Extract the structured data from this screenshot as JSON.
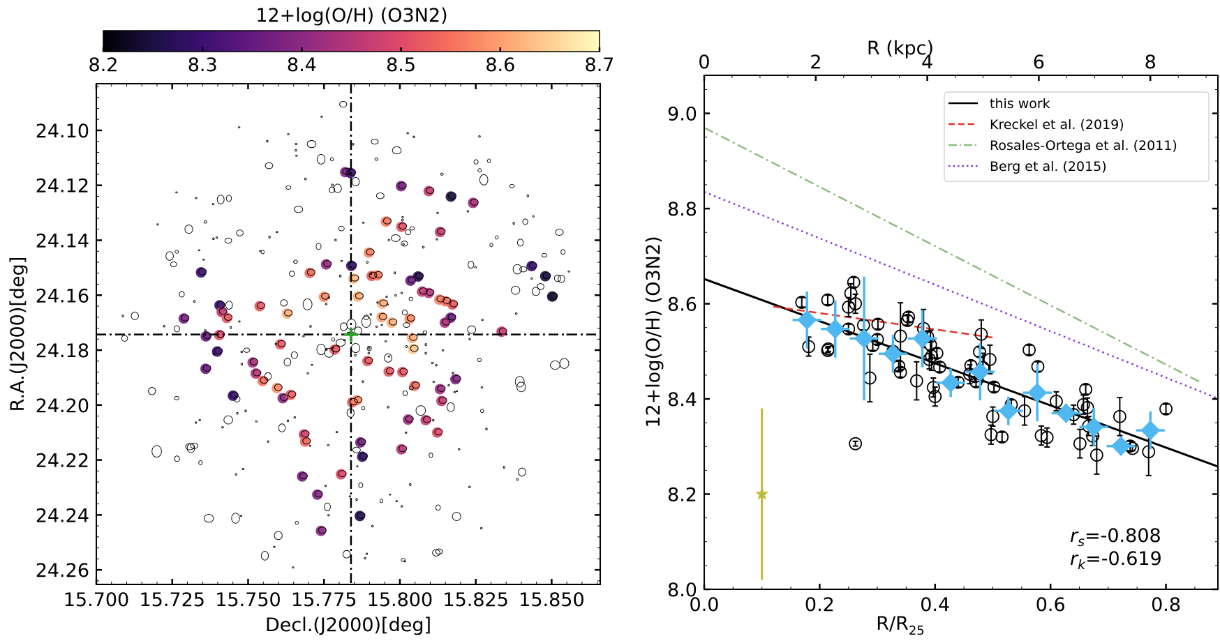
{
  "chart_data": [
    {
      "type": "scatter",
      "panel": "left",
      "title": "",
      "xlabel": "Decl.(J2000)[deg]",
      "ylabel": "R.A.(J2000)[deg]",
      "xlim": [
        15.7,
        15.866
      ],
      "ylim": [
        24.2653,
        24.083
      ],
      "y_inverted": true,
      "xticks": [
        "15.700",
        "15.725",
        "15.750",
        "15.775",
        "15.800",
        "15.825",
        "15.850"
      ],
      "xtick_values": [
        15.7,
        15.725,
        15.75,
        15.775,
        15.8,
        15.825,
        15.85
      ],
      "yticks": [
        "24.10",
        "24.12",
        "24.14",
        "24.16",
        "24.18",
        "24.20",
        "24.22",
        "24.24",
        "24.26"
      ],
      "ytick_values": [
        24.1,
        24.12,
        24.14,
        24.16,
        24.18,
        24.2,
        24.22,
        24.24,
        24.26
      ],
      "center": {
        "x": 15.7839,
        "y": 24.1743,
        "marker": "plus",
        "color": "#2ca02c"
      },
      "crosshair_style": "dash-dot",
      "colorbar": {
        "label": "12+log(O/H) (O3N2)",
        "min": 8.2,
        "max": 8.7,
        "ticks": [
          "8.2",
          "8.3",
          "8.4",
          "8.5",
          "8.6",
          "8.7"
        ],
        "tick_values": [
          8.2,
          8.3,
          8.4,
          8.5,
          8.6,
          8.7
        ],
        "colormap": "magma",
        "stops": [
          "#000004",
          "#1c1044",
          "#3b0f70",
          "#641a80",
          "#8c2981",
          "#b73779",
          "#de4968",
          "#f7705c",
          "#fe9f6d",
          "#fecf92",
          "#fcfdbf"
        ]
      },
      "points": [
        {
          "x": 15.782,
          "y": 24.1152,
          "z": 8.39
        },
        {
          "x": 15.7837,
          "y": 24.1155,
          "z": 8.3
        },
        {
          "x": 15.8004,
          "y": 24.1203,
          "z": 8.37
        },
        {
          "x": 15.8095,
          "y": 24.1221,
          "z": 8.47
        },
        {
          "x": 15.8168,
          "y": 24.1241,
          "z": 8.25
        },
        {
          "x": 15.8241,
          "y": 24.1264,
          "z": 8.43
        },
        {
          "x": 15.7954,
          "y": 24.1332,
          "z": 8.56
        },
        {
          "x": 15.8005,
          "y": 24.1351,
          "z": 8.51
        },
        {
          "x": 15.8132,
          "y": 24.137,
          "z": 8.47
        },
        {
          "x": 15.7898,
          "y": 24.1445,
          "z": 8.57
        },
        {
          "x": 15.7757,
          "y": 24.1488,
          "z": 8.41
        },
        {
          "x": 15.784,
          "y": 24.1493,
          "z": 8.29
        },
        {
          "x": 15.7703,
          "y": 24.1519,
          "z": 8.54
        },
        {
          "x": 15.7907,
          "y": 24.153,
          "z": 8.53
        },
        {
          "x": 15.7925,
          "y": 24.1528,
          "z": 8.56
        },
        {
          "x": 15.806,
          "y": 24.1532,
          "z": 8.26
        },
        {
          "x": 15.8035,
          "y": 24.1547,
          "z": 8.36
        },
        {
          "x": 15.8434,
          "y": 24.1494,
          "z": 8.3
        },
        {
          "x": 15.8479,
          "y": 24.1531,
          "z": 8.25
        },
        {
          "x": 15.7345,
          "y": 24.1517,
          "z": 8.3
        },
        {
          "x": 15.7406,
          "y": 24.1637,
          "z": 8.3
        },
        {
          "x": 15.7413,
          "y": 24.1661,
          "z": 8.46
        },
        {
          "x": 15.743,
          "y": 24.1683,
          "z": 8.52
        },
        {
          "x": 15.7288,
          "y": 24.1685,
          "z": 8.38
        },
        {
          "x": 15.7538,
          "y": 24.164,
          "z": 8.52
        },
        {
          "x": 15.7628,
          "y": 24.1667,
          "z": 8.62
        },
        {
          "x": 15.775,
          "y": 24.1606,
          "z": 8.58
        },
        {
          "x": 15.7847,
          "y": 24.154,
          "z": 8.63
        },
        {
          "x": 15.7862,
          "y": 24.1605,
          "z": 8.62
        },
        {
          "x": 15.7942,
          "y": 24.1631,
          "z": 8.62
        },
        {
          "x": 15.794,
          "y": 24.168,
          "z": 8.6
        },
        {
          "x": 15.7973,
          "y": 24.17,
          "z": 8.62
        },
        {
          "x": 15.8032,
          "y": 24.1686,
          "z": 8.58
        },
        {
          "x": 15.8073,
          "y": 24.1587,
          "z": 8.47
        },
        {
          "x": 15.8095,
          "y": 24.1592,
          "z": 8.45
        },
        {
          "x": 15.813,
          "y": 24.1616,
          "z": 8.57
        },
        {
          "x": 15.815,
          "y": 24.1622,
          "z": 8.55
        },
        {
          "x": 15.8173,
          "y": 24.1634,
          "z": 8.52
        },
        {
          "x": 15.8167,
          "y": 24.1682,
          "z": 8.36
        },
        {
          "x": 15.8148,
          "y": 24.17,
          "z": 8.44
        },
        {
          "x": 15.8335,
          "y": 24.1733,
          "z": 8.47
        },
        {
          "x": 15.8502,
          "y": 24.1605,
          "z": 8.23
        },
        {
          "x": 15.804,
          "y": 24.1756,
          "z": 8.62
        },
        {
          "x": 15.8043,
          "y": 24.1796,
          "z": 8.64
        },
        {
          "x": 15.7405,
          "y": 24.1745,
          "z": 8.5
        },
        {
          "x": 15.7361,
          "y": 24.175,
          "z": 8.35
        },
        {
          "x": 15.7398,
          "y": 24.1805,
          "z": 8.3
        },
        {
          "x": 15.736,
          "y": 24.1868,
          "z": 8.36
        },
        {
          "x": 15.745,
          "y": 24.1966,
          "z": 8.3
        },
        {
          "x": 15.7515,
          "y": 24.1845,
          "z": 8.43
        },
        {
          "x": 15.7525,
          "y": 24.1885,
          "z": 8.45
        },
        {
          "x": 15.7548,
          "y": 24.1912,
          "z": 8.55
        },
        {
          "x": 15.7595,
          "y": 24.1938,
          "z": 8.58
        },
        {
          "x": 15.7614,
          "y": 24.1975,
          "z": 8.4
        },
        {
          "x": 15.764,
          "y": 24.1963,
          "z": 8.53
        },
        {
          "x": 15.7606,
          "y": 24.1779,
          "z": 8.52
        },
        {
          "x": 15.7684,
          "y": 24.2107,
          "z": 8.48
        },
        {
          "x": 15.7688,
          "y": 24.2133,
          "z": 8.54
        },
        {
          "x": 15.7678,
          "y": 24.226,
          "z": 8.38
        },
        {
          "x": 15.7728,
          "y": 24.2326,
          "z": 8.39
        },
        {
          "x": 15.7806,
          "y": 24.2252,
          "z": 8.5
        },
        {
          "x": 15.7843,
          "y": 24.199,
          "z": 8.53
        },
        {
          "x": 15.7858,
          "y": 24.1983,
          "z": 8.58
        },
        {
          "x": 15.787,
          "y": 24.2136,
          "z": 8.37
        },
        {
          "x": 15.7876,
          "y": 24.2188,
          "z": 8.28
        },
        {
          "x": 15.7868,
          "y": 24.2404,
          "z": 8.26
        },
        {
          "x": 15.774,
          "y": 24.2458,
          "z": 8.4
        },
        {
          "x": 15.7785,
          "y": 24.1798,
          "z": 8.52
        },
        {
          "x": 15.7893,
          "y": 24.184,
          "z": 8.52
        },
        {
          "x": 15.7963,
          "y": 24.1878,
          "z": 8.52
        },
        {
          "x": 15.8008,
          "y": 24.188,
          "z": 8.52
        },
        {
          "x": 15.8027,
          "y": 24.2053,
          "z": 8.42
        },
        {
          "x": 15.8085,
          "y": 24.2055,
          "z": 8.47
        },
        {
          "x": 15.8048,
          "y": 24.193,
          "z": 8.54
        },
        {
          "x": 15.8132,
          "y": 24.1942,
          "z": 8.42
        },
        {
          "x": 15.8137,
          "y": 24.1985,
          "z": 8.47
        },
        {
          "x": 15.8183,
          "y": 24.1906,
          "z": 8.39
        },
        {
          "x": 15.8123,
          "y": 24.21,
          "z": 8.5
        },
        {
          "x": 15.8005,
          "y": 24.2161,
          "z": 8.45
        }
      ]
    },
    {
      "type": "scatter",
      "panel": "right",
      "title": "",
      "xlabel": "R/R25",
      "xlabel_main": "R/R",
      "xlabel_sub": "25",
      "ylabel": "12+log(O/H) (O3N2)",
      "top_xlabel": "R (kpc)",
      "xlim": [
        0.0,
        0.89
      ],
      "ylim": [
        8.0,
        9.08
      ],
      "kpc_per_unit": 10.35,
      "xticks": [
        "0.0",
        "0.2",
        "0.4",
        "0.6",
        "0.8"
      ],
      "xtick_values": [
        0.0,
        0.2,
        0.4,
        0.6,
        0.8
      ],
      "yticks": [
        "8.0",
        "8.2",
        "8.4",
        "8.6",
        "8.8",
        "9.0"
      ],
      "ytick_values": [
        8.0,
        8.2,
        8.4,
        8.6,
        8.8,
        9.0
      ],
      "top_xticks": [
        "0",
        "2",
        "4",
        "6",
        "8"
      ],
      "top_xtick_values": [
        0,
        2,
        4,
        6,
        8
      ],
      "legend": {
        "position": "top-right",
        "entries": [
          {
            "label": "this work",
            "color": "#000000",
            "style": "solid"
          },
          {
            "label": "Kreckel et al. (2019)",
            "color": "#e8352b",
            "style": "dashed"
          },
          {
            "label": "Rosales-Ortega et al. (2011)",
            "color": "#8fbc7f",
            "style": "dashdot"
          },
          {
            "label": "Berg et al. (2015)",
            "color": "#8a2be2",
            "style": "dotted"
          }
        ]
      },
      "lines": [
        {
          "name": "this work",
          "x": [
            0.0,
            0.89
          ],
          "y": [
            8.652,
            8.258
          ],
          "color": "#000000",
          "style": "solid"
        },
        {
          "name": "Kreckel et al. (2019)",
          "x": [
            0.12,
            0.5
          ],
          "y": [
            8.594,
            8.529
          ],
          "color": "#e8352b",
          "style": "dashed"
        },
        {
          "name": "Rosales-Ortega et al. (2011)",
          "x": [
            0.0,
            0.86
          ],
          "y": [
            8.97,
            8.435
          ],
          "color": "#8fbc7f",
          "style": "dashdot"
        },
        {
          "name": "Berg et al. (2015)",
          "x": [
            0.0,
            0.89
          ],
          "y": [
            8.835,
            8.401
          ],
          "color": "#8a2be2",
          "style": "dotted"
        }
      ],
      "annotations": {
        "rs_label": "r",
        "rs_sub": "s",
        "rs_value": "=-0.808",
        "rk_label": "r",
        "rk_sub": "k",
        "rk_value": "=-0.619"
      },
      "reference_star": {
        "x": 0.1,
        "y": 8.2,
        "yerr_low": 0.18,
        "yerr_high": 0.18,
        "color": "#c2b93a"
      },
      "binned": {
        "color": "#4fb8f0",
        "points": [
          {
            "x": 0.178,
            "y": 8.566,
            "xerr": 0.025,
            "yerr": 0.06
          },
          {
            "x": 0.227,
            "y": 8.547,
            "xerr": 0.025,
            "yerr": 0.06
          },
          {
            "x": 0.277,
            "y": 8.527,
            "xerr": 0.025,
            "yerr": 0.13
          },
          {
            "x": 0.327,
            "y": 8.495,
            "xerr": 0.025,
            "yerr": 0.04
          },
          {
            "x": 0.378,
            "y": 8.527,
            "xerr": 0.025,
            "yerr": 0.06
          },
          {
            "x": 0.427,
            "y": 8.434,
            "xerr": 0.025,
            "yerr": 0.03
          },
          {
            "x": 0.478,
            "y": 8.457,
            "xerr": 0.025,
            "yerr": 0.06
          },
          {
            "x": 0.527,
            "y": 8.375,
            "xerr": 0.025,
            "yerr": 0.03
          },
          {
            "x": 0.577,
            "y": 8.413,
            "xerr": 0.025,
            "yerr": 0.06
          },
          {
            "x": 0.627,
            "y": 8.37,
            "xerr": 0.025,
            "yerr": 0.02
          },
          {
            "x": 0.675,
            "y": 8.341,
            "xerr": 0.025,
            "yerr": 0.04
          },
          {
            "x": 0.722,
            "y": 8.301,
            "xerr": 0.025,
            "yerr": 0.02
          },
          {
            "x": 0.773,
            "y": 8.334,
            "xerr": 0.025,
            "yerr": 0.04
          }
        ]
      },
      "individual": {
        "color": "#000000",
        "points": [
          {
            "x": 0.169,
            "y": 8.603,
            "yerr": 0.01
          },
          {
            "x": 0.181,
            "y": 8.51,
            "yerr": 0.02
          },
          {
            "x": 0.215,
            "y": 8.505,
            "yerr": 0.005
          },
          {
            "x": 0.214,
            "y": 8.502,
            "yerr": 0.005
          },
          {
            "x": 0.214,
            "y": 8.608,
            "yerr": 0.01
          },
          {
            "x": 0.25,
            "y": 8.593,
            "yerr": 0.02
          },
          {
            "x": 0.254,
            "y": 8.622,
            "yerr": 0.02
          },
          {
            "x": 0.259,
            "y": 8.645,
            "yerr": 0.01
          },
          {
            "x": 0.262,
            "y": 8.6,
            "yerr": 0.02
          },
          {
            "x": 0.25,
            "y": 8.547,
            "yerr": 0.01
          },
          {
            "x": 0.262,
            "y": 8.306,
            "yerr": 0.005
          },
          {
            "x": 0.276,
            "y": 8.555,
            "yerr": 0.01
          },
          {
            "x": 0.287,
            "y": 8.444,
            "yerr": 0.05
          },
          {
            "x": 0.292,
            "y": 8.512,
            "yerr": 0.01
          },
          {
            "x": 0.301,
            "y": 8.557,
            "yerr": 0.01
          },
          {
            "x": 0.3,
            "y": 8.525,
            "yerr": 0.01
          },
          {
            "x": 0.327,
            "y": 8.5,
            "yerr": 0.01
          },
          {
            "x": 0.337,
            "y": 8.469,
            "yerr": 0.01
          },
          {
            "x": 0.34,
            "y": 8.456,
            "yerr": 0.01
          },
          {
            "x": 0.34,
            "y": 8.532,
            "yerr": 0.07
          },
          {
            "x": 0.352,
            "y": 8.565,
            "yerr": 0.01
          },
          {
            "x": 0.354,
            "y": 8.572,
            "yerr": 0.01
          },
          {
            "x": 0.368,
            "y": 8.438,
            "yerr": 0.04
          },
          {
            "x": 0.38,
            "y": 8.548,
            "yerr": 0.04
          },
          {
            "x": 0.387,
            "y": 8.531,
            "yerr": 0.01
          },
          {
            "x": 0.392,
            "y": 8.514,
            "yerr": 0.03
          },
          {
            "x": 0.394,
            "y": 8.49,
            "yerr": 0.03
          },
          {
            "x": 0.39,
            "y": 8.483,
            "yerr": 0.02
          },
          {
            "x": 0.397,
            "y": 8.424,
            "yerr": 0.02
          },
          {
            "x": 0.4,
            "y": 8.405,
            "yerr": 0.02
          },
          {
            "x": 0.403,
            "y": 8.496,
            "yerr": 0.01
          },
          {
            "x": 0.408,
            "y": 8.467,
            "yerr": 0.01
          },
          {
            "x": 0.44,
            "y": 8.435,
            "yerr": 0.01
          },
          {
            "x": 0.46,
            "y": 8.452,
            "yerr": 0.02
          },
          {
            "x": 0.462,
            "y": 8.47,
            "yerr": 0.01
          },
          {
            "x": 0.469,
            "y": 8.447,
            "yerr": 0.01
          },
          {
            "x": 0.471,
            "y": 8.436,
            "yerr": 0.01
          },
          {
            "x": 0.477,
            "y": 8.499,
            "yerr": 0.01
          },
          {
            "x": 0.48,
            "y": 8.536,
            "yerr": 0.03
          },
          {
            "x": 0.483,
            "y": 8.466,
            "yerr": 0.03
          },
          {
            "x": 0.495,
            "y": 8.483,
            "yerr": 0.03
          },
          {
            "x": 0.497,
            "y": 8.325,
            "yerr": 0.02
          },
          {
            "x": 0.502,
            "y": 8.425,
            "yerr": 0.01
          },
          {
            "x": 0.5,
            "y": 8.363,
            "yerr": 0.02
          },
          {
            "x": 0.516,
            "y": 8.32,
            "yerr": 0.01
          },
          {
            "x": 0.532,
            "y": 8.388,
            "yerr": 0.01
          },
          {
            "x": 0.555,
            "y": 8.375,
            "yerr": 0.03
          },
          {
            "x": 0.563,
            "y": 8.503,
            "yerr": 0.01
          },
          {
            "x": 0.578,
            "y": 8.468,
            "yerr": 0.01
          },
          {
            "x": 0.584,
            "y": 8.323,
            "yerr": 0.02
          },
          {
            "x": 0.594,
            "y": 8.319,
            "yerr": 0.02
          },
          {
            "x": 0.61,
            "y": 8.395,
            "yerr": 0.02
          },
          {
            "x": 0.64,
            "y": 8.367,
            "yerr": 0.02
          },
          {
            "x": 0.651,
            "y": 8.306,
            "yerr": 0.03
          },
          {
            "x": 0.657,
            "y": 8.388,
            "yerr": 0.02
          },
          {
            "x": 0.661,
            "y": 8.42,
            "yerr": 0.01
          },
          {
            "x": 0.664,
            "y": 8.382,
            "yerr": 0.02
          },
          {
            "x": 0.666,
            "y": 8.343,
            "yerr": 0.02
          },
          {
            "x": 0.673,
            "y": 8.322,
            "yerr": 0.02
          },
          {
            "x": 0.68,
            "y": 8.282,
            "yerr": 0.04
          },
          {
            "x": 0.72,
            "y": 8.363,
            "yerr": 0.04
          },
          {
            "x": 0.738,
            "y": 8.301,
            "yerr": 0.01
          },
          {
            "x": 0.742,
            "y": 8.296,
            "yerr": 0.005
          },
          {
            "x": 0.77,
            "y": 8.289,
            "yerr": 0.05
          },
          {
            "x": 0.8,
            "y": 8.379,
            "yerr": 0.01
          }
        ]
      }
    }
  ]
}
